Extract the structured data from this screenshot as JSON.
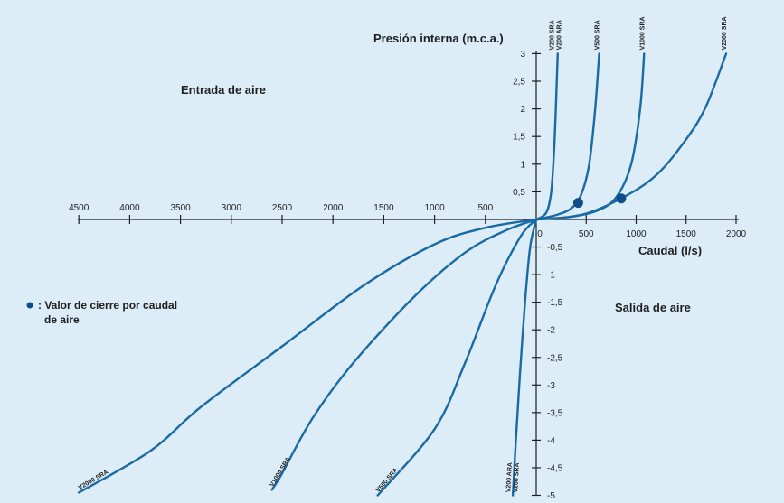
{
  "chart_data": {
    "type": "line",
    "axis_titles": {
      "y": "Presión interna (m.c.a.)",
      "x": "Caudal (l/s)"
    },
    "annotations": {
      "upper_left": "Entrada de aire",
      "lower_right": "Salida de aire"
    },
    "legend": {
      "marker_label_line1": ": Valor de cierre por caudal",
      "marker_label_line2": "de aire"
    },
    "x_ticks_positive": [
      "0",
      "500",
      "1000",
      "1500",
      "2000"
    ],
    "x_ticks_negative": [
      "4500",
      "4000",
      "3500",
      "3000",
      "2500",
      "2000",
      "1500",
      "1000",
      "500"
    ],
    "y_ticks_positive": [
      "0,5",
      "1",
      "1,5",
      "2",
      "2,5",
      "3"
    ],
    "y_ticks_negative": [
      "-0,5",
      "-1",
      "-1,5",
      "-2",
      "-2,5",
      "-3",
      "-3,5",
      "-4",
      "-4,5",
      "-5"
    ],
    "xlim": [
      -4500,
      2000
    ],
    "ylim": [
      -5,
      3
    ],
    "colors": {
      "curve": "#1a6aa3",
      "marker": "#0d4f8b",
      "panel": "#dcedf8",
      "axis": "#1f1f1f"
    },
    "series": [
      {
        "name": "V200 SRA / V200 ARA",
        "top_label_1": "V200 SRA",
        "top_label_2": "V200 ARA",
        "bottom_label_1": "V200 SRA",
        "bottom_label_2": "V200 ARA",
        "positive": [
          [
            0,
            0
          ],
          [
            100,
            0.12
          ],
          [
            150,
            0.5
          ],
          [
            180,
            1.3
          ],
          [
            200,
            2.2
          ],
          [
            215,
            3
          ]
        ],
        "negative": [
          [
            0,
            0
          ],
          [
            -60,
            -0.5
          ],
          [
            -110,
            -1.5
          ],
          [
            -160,
            -2.8
          ],
          [
            -200,
            -4
          ],
          [
            -230,
            -5
          ]
        ]
      },
      {
        "name": "V500 SRA",
        "top_label_1": "V500 SRA",
        "bottom_label_1": "V500 SRA",
        "positive": [
          [
            0,
            0
          ],
          [
            200,
            0.08
          ],
          [
            350,
            0.2
          ],
          [
            450,
            0.45
          ],
          [
            530,
            1
          ],
          [
            590,
            2
          ],
          [
            630,
            3
          ]
        ],
        "negative": [
          [
            0,
            0
          ],
          [
            -150,
            -0.3
          ],
          [
            -400,
            -1.2
          ],
          [
            -700,
            -2.6
          ],
          [
            -1000,
            -3.8
          ],
          [
            -1560,
            -5
          ]
        ]
      },
      {
        "name": "V1000 SRA",
        "top_label_1": "V1000 SRA",
        "bottom_label_1": "V1000 SRA",
        "positive": [
          [
            0,
            0
          ],
          [
            300,
            0.04
          ],
          [
            600,
            0.15
          ],
          [
            800,
            0.4
          ],
          [
            950,
            1
          ],
          [
            1040,
            2
          ],
          [
            1080,
            3
          ]
        ],
        "negative": [
          [
            0,
            0
          ],
          [
            -300,
            -0.2
          ],
          [
            -700,
            -0.6
          ],
          [
            -1200,
            -1.4
          ],
          [
            -1800,
            -2.6
          ],
          [
            -2200,
            -3.6
          ],
          [
            -2500,
            -4.6
          ],
          [
            -2600,
            -4.9
          ]
        ]
      },
      {
        "name": "V2000 SRA",
        "top_label_1": "V2000 SRA",
        "bottom_label_1": "V2000 SRA",
        "positive": [
          [
            0,
            0
          ],
          [
            450,
            0.08
          ],
          [
            850,
            0.38
          ],
          [
            1200,
            0.8
          ],
          [
            1500,
            1.45
          ],
          [
            1700,
            2.05
          ],
          [
            1900,
            3
          ]
        ],
        "negative": [
          [
            0,
            0
          ],
          [
            -500,
            -0.15
          ],
          [
            -1000,
            -0.45
          ],
          [
            -1700,
            -1.2
          ],
          [
            -2500,
            -2.3
          ],
          [
            -3300,
            -3.4
          ],
          [
            -3800,
            -4.2
          ],
          [
            -4500,
            -4.95
          ]
        ]
      }
    ],
    "closure_points": [
      {
        "series": "V500 SRA",
        "x": 420,
        "y": 0.3
      },
      {
        "series": "V2000 SRA",
        "x": 850,
        "y": 0.38
      }
    ]
  }
}
